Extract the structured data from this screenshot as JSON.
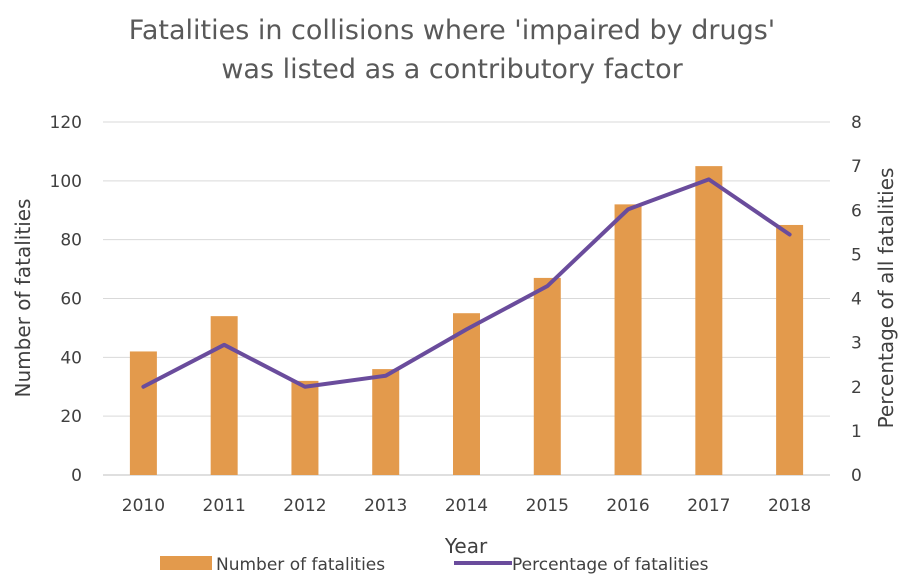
{
  "chart_data": {
    "type": "bar",
    "title": [
      "Fatalities in collisions where 'impaired by drugs'",
      "was listed as a contributory factor"
    ],
    "xlabel": "Year",
    "ylabel": "Number of fatalities",
    "y2label": "Percentage of all fatalities",
    "categories": [
      "2010",
      "2011",
      "2012",
      "2013",
      "2014",
      "2015",
      "2016",
      "2017",
      "2018"
    ],
    "ylim": [
      0,
      120
    ],
    "yticks": [
      0,
      20,
      40,
      60,
      80,
      100,
      120
    ],
    "y2lim": [
      0,
      8
    ],
    "y2ticks": [
      0,
      1,
      2,
      3,
      4,
      5,
      6,
      7,
      8
    ],
    "grid": true,
    "legend_position": "bottom",
    "series": [
      {
        "name": "Number of fatalities",
        "type": "bar",
        "axis": "left",
        "color": "#E39A4C",
        "values": [
          42,
          54,
          32,
          36,
          55,
          67,
          92,
          105,
          85
        ]
      },
      {
        "name": "Percentage of fatalities",
        "type": "line",
        "axis": "right",
        "color": "#6A4C9C",
        "values": [
          2.0,
          2.95,
          2.0,
          2.25,
          3.3,
          4.28,
          6.02,
          6.7,
          5.45
        ]
      }
    ]
  }
}
